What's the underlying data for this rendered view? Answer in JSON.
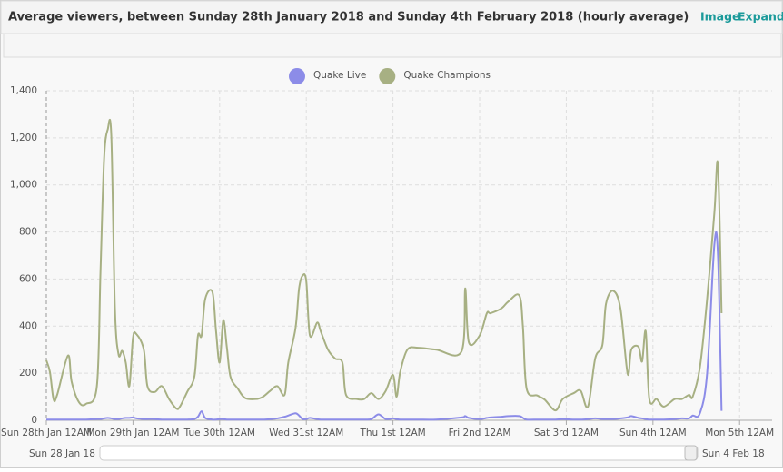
{
  "toolbar_links": [
    "Image",
    "Expand"
  ],
  "chart_data": {
    "type": "line",
    "title": "Average viewers, between Sunday 28th January 2018 and Sunday 4th February 2018 (hourly average)",
    "x": [
      "2018-01-28T00:00",
      "2018-01-28T01:00",
      "2018-01-28T02:00",
      "2018-01-28T03:00",
      "2018-01-28T06:00",
      "2018-01-28T07:00",
      "2018-01-28T09:00",
      "2018-01-28T11:00",
      "2018-01-28T14:00",
      "2018-01-28T15:00",
      "2018-01-28T16:00",
      "2018-01-28T17:00",
      "2018-01-28T18:00",
      "2018-01-28T19:00",
      "2018-01-28T20:00",
      "2018-01-28T21:00",
      "2018-01-28T22:00",
      "2018-01-28T23:00",
      "2018-01-29T00:00",
      "2018-01-29T01:00",
      "2018-01-29T03:00",
      "2018-01-29T04:00",
      "2018-01-29T06:00",
      "2018-01-29T08:00",
      "2018-01-29T10:00",
      "2018-01-29T12:00",
      "2018-01-29T13:00",
      "2018-01-29T15:00",
      "2018-01-29T17:00",
      "2018-01-29T18:00",
      "2018-01-29T19:00",
      "2018-01-29T20:00",
      "2018-01-29T22:00",
      "2018-01-29T23:00",
      "2018-01-30T00:00",
      "2018-01-30T01:00",
      "2018-01-30T02:00",
      "2018-01-30T03:00",
      "2018-01-30T05:00",
      "2018-01-30T07:00",
      "2018-01-30T10:00",
      "2018-01-30T12:00",
      "2018-01-30T14:00",
      "2018-01-30T16:00",
      "2018-01-30T18:00",
      "2018-01-30T19:00",
      "2018-01-30T21:00",
      "2018-01-30T22:00",
      "2018-01-30T23:00",
      "2018-01-31T00:00",
      "2018-01-31T01:00",
      "2018-01-31T03:00",
      "2018-01-31T04:00",
      "2018-01-31T06:00",
      "2018-01-31T08:00",
      "2018-01-31T10:00",
      "2018-01-31T11:00",
      "2018-01-31T14:00",
      "2018-01-31T16:00",
      "2018-01-31T18:00",
      "2018-01-31T20:00",
      "2018-01-31T22:00",
      "2018-02-01T00:00",
      "2018-02-01T01:00",
      "2018-02-01T02:00",
      "2018-02-01T04:00",
      "2018-02-01T07:00",
      "2018-02-01T12:00",
      "2018-02-01T19:00",
      "2018-02-01T20:00",
      "2018-02-01T21:00",
      "2018-02-02T00:00",
      "2018-02-02T02:00",
      "2018-02-02T03:00",
      "2018-02-02T06:00",
      "2018-02-02T08:00",
      "2018-02-02T11:00",
      "2018-02-02T12:00",
      "2018-02-02T13:00",
      "2018-02-02T16:00",
      "2018-02-02T18:00",
      "2018-02-02T21:00",
      "2018-02-02T23:00",
      "2018-02-03T02:00",
      "2018-02-03T04:00",
      "2018-02-03T06:00",
      "2018-02-03T08:00",
      "2018-02-03T10:00",
      "2018-02-03T11:00",
      "2018-02-03T13:00",
      "2018-02-03T15:00",
      "2018-02-03T17:00",
      "2018-02-03T18:00",
      "2018-02-03T20:00",
      "2018-02-03T21:00",
      "2018-02-03T22:00",
      "2018-02-03T23:00",
      "2018-02-04T01:00",
      "2018-02-04T03:00",
      "2018-02-04T06:00",
      "2018-02-04T08:00",
      "2018-02-04T10:00",
      "2018-02-04T11:00",
      "2018-02-04T13:00",
      "2018-02-04T15:00",
      "2018-02-04T17:00",
      "2018-02-04T18:00",
      "2018-02-04T19:00"
    ],
    "series": [
      {
        "name": "Quake Live",
        "color": "#8c8ce8",
        "values": [
          3,
          3,
          3,
          3,
          3,
          3,
          3,
          3,
          5,
          5,
          8,
          10,
          8,
          5,
          5,
          8,
          10,
          10,
          12,
          8,
          5,
          5,
          5,
          3,
          3,
          3,
          3,
          3,
          5,
          15,
          38,
          10,
          3,
          3,
          5,
          5,
          3,
          3,
          3,
          3,
          3,
          3,
          5,
          8,
          15,
          20,
          30,
          20,
          5,
          5,
          10,
          5,
          3,
          3,
          3,
          3,
          3,
          3,
          3,
          5,
          25,
          5,
          8,
          5,
          3,
          3,
          3,
          3,
          12,
          18,
          10,
          5,
          10,
          12,
          15,
          18,
          18,
          10,
          3,
          3,
          3,
          3,
          5,
          3,
          3,
          5,
          8,
          5,
          5,
          5,
          8,
          12,
          18,
          10,
          8,
          5,
          3,
          3,
          3,
          5,
          8,
          8,
          20,
          30,
          200,
          745,
          700,
          40
        ]
      },
      {
        "name": "Quake Champions",
        "color": "#a7b083",
        "values": [
          255,
          205,
          90,
          108,
          275,
          165,
          78,
          70,
          145,
          630,
          1110,
          1235,
          1208,
          475,
          280,
          295,
          245,
          145,
          350,
          365,
          300,
          145,
          120,
          145,
          90,
          50,
          58,
          120,
          185,
          360,
          360,
          515,
          545,
          380,
          245,
          425,
          310,
          185,
          135,
          95,
          90,
          100,
          125,
          145,
          108,
          245,
          390,
          560,
          615,
          590,
          360,
          415,
          378,
          300,
          262,
          245,
          108,
          90,
          90,
          115,
          90,
          125,
          193,
          100,
          205,
          300,
          308,
          300,
          293,
          560,
          332,
          360,
          455,
          455,
          475,
          505,
          530,
          395,
          135,
          105,
          88,
          42,
          90,
          115,
          125,
          58,
          262,
          320,
          495,
          550,
          475,
          197,
          300,
          312,
          250,
          378,
          90,
          90,
          58,
          90,
          90,
          108,
          100,
          225,
          515,
          880,
          1085,
          455
        ]
      }
    ],
    "xlim": [
      "2018-01-28T00:00",
      "2018-02-05T09:00"
    ],
    "xticks": [
      {
        "value": "2018-01-28T00:00",
        "label": "Sun 28th Jan 12AM"
      },
      {
        "value": "2018-01-29T00:00",
        "label": "Mon 29th Jan 12AM"
      },
      {
        "value": "2018-01-30T00:00",
        "label": "Tue 30th 12AM"
      },
      {
        "value": "2018-01-31T00:00",
        "label": "Wed 31st 12AM"
      },
      {
        "value": "2018-02-01T00:00",
        "label": "Thu 1st 12AM"
      },
      {
        "value": "2018-02-02T00:00",
        "label": "Fri 2nd 12AM"
      },
      {
        "value": "2018-02-03T00:00",
        "label": "Sat 3rd 12AM"
      },
      {
        "value": "2018-02-04T00:00",
        "label": "Sun 4th 12AM"
      },
      {
        "value": "2018-02-05T00:00",
        "label": "Mon 5th 12AM"
      }
    ],
    "ylim": [
      0,
      1400
    ],
    "yticks": [
      0,
      200,
      400,
      600,
      800,
      {
        "value": 1000,
        "label": "1,000"
      },
      {
        "value": 1200,
        "label": "1,200"
      },
      {
        "value": 1400,
        "label": "1,400"
      }
    ],
    "grid": true,
    "legend": "top",
    "navigator": {
      "start_label": "Sun 28 Jan 18",
      "end_label": "Sun 4 Feb 18"
    }
  }
}
